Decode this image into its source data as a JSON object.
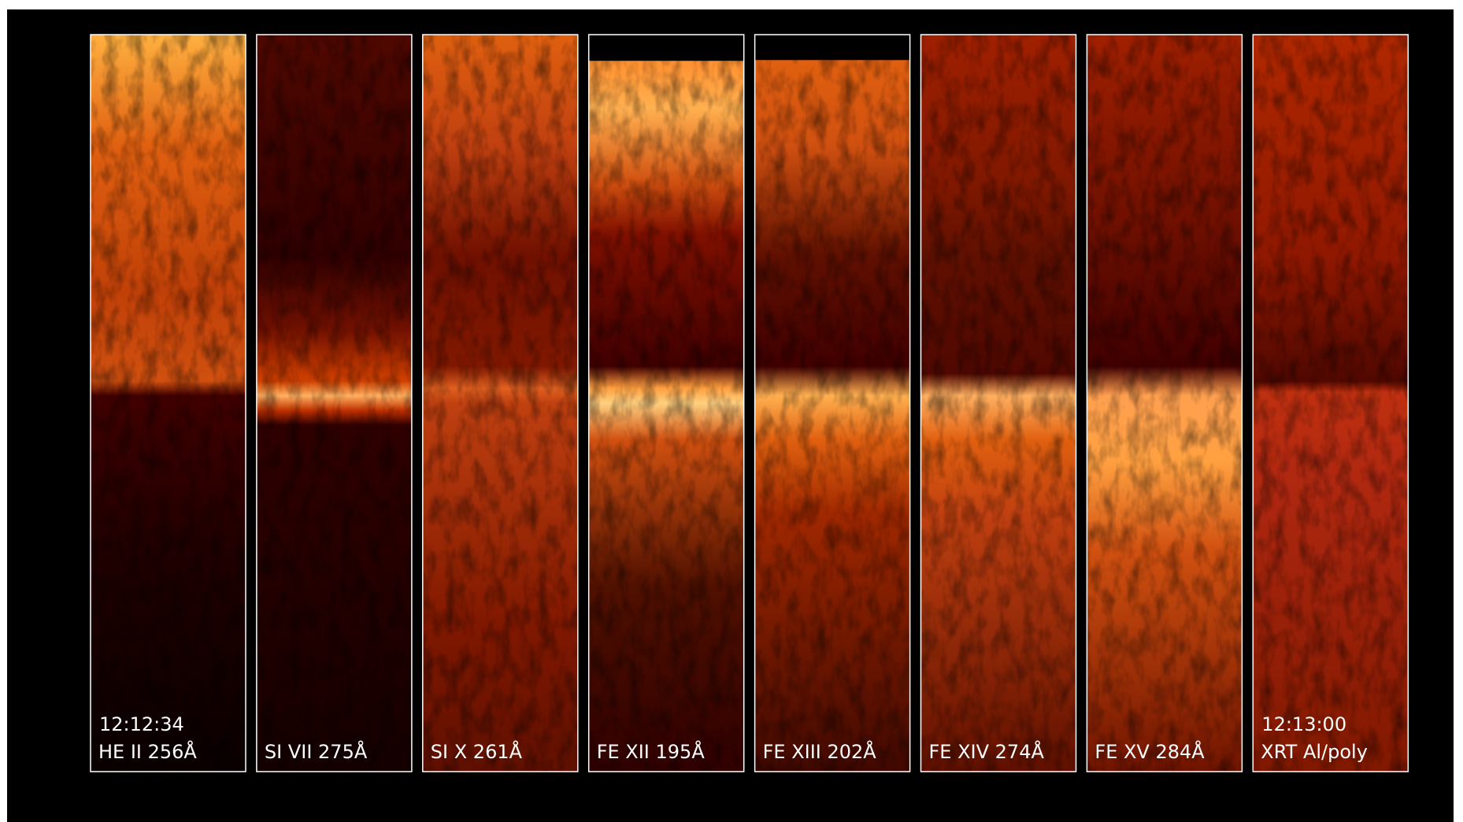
{
  "panels": [
    {
      "time": "12:12:34",
      "label": "HE II 256Å"
    },
    {
      "label": "SI VII 275Å"
    },
    {
      "label": "SI X 261Å"
    },
    {
      "label": "FE XII 195Å"
    },
    {
      "label": "FE XIII 202Å"
    },
    {
      "label": "FE XIV 274Å"
    },
    {
      "label": "FE XV 284Å"
    },
    {
      "time": "12:13:00",
      "label": "XRT Al/poly"
    }
  ]
}
